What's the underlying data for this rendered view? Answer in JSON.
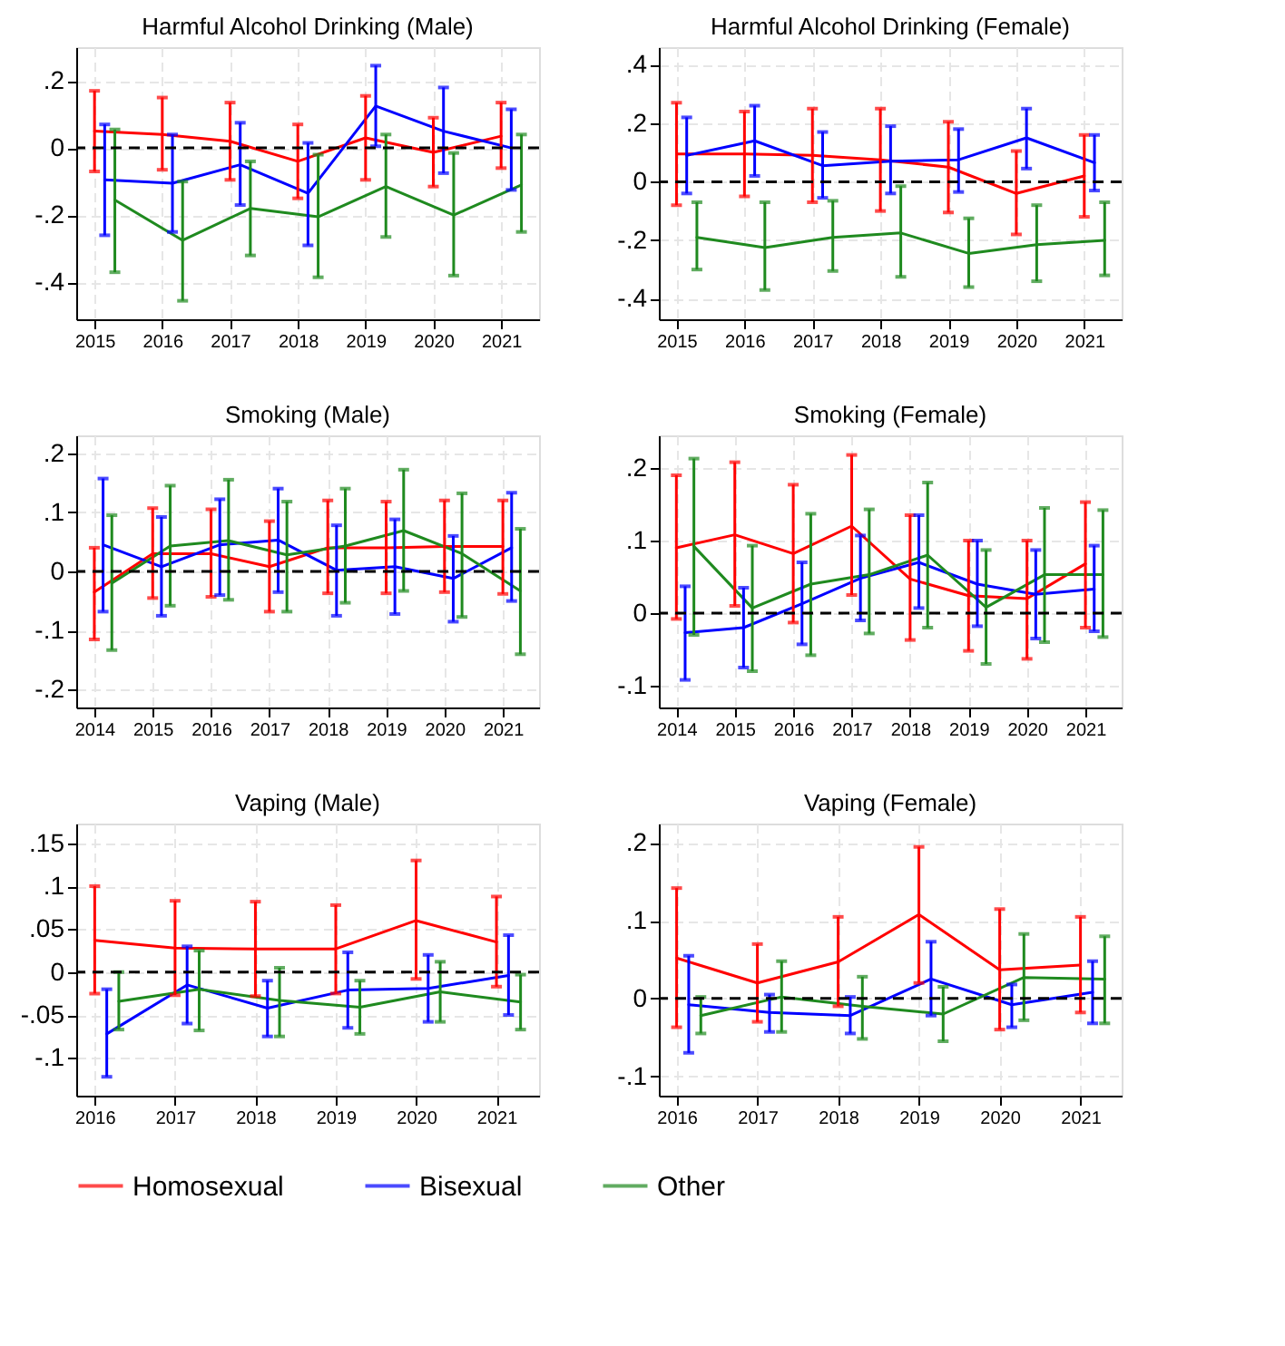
{
  "chart_data": [
    {
      "type": "line",
      "title": "Harmful Alcohol Drinking (Male)",
      "xlim": [
        2014.73,
        2021.56
      ],
      "xticks": [
        2015,
        2016,
        2017,
        2018,
        2019,
        2020,
        2021
      ],
      "ylim": [
        -0.51,
        0.3
      ],
      "yticks": [
        {
          "value": -0.4,
          "label": "-.4"
        },
        {
          "value": -0.2,
          "label": "-.2"
        },
        0,
        {
          "value": 0.2,
          "label": ".2"
        }
      ],
      "grid": true,
      "legend": "bottom",
      "marker": "none",
      "line_style": "solid",
      "ref_lines": [
        {
          "axis": "y",
          "value": 0,
          "line_style": "dashed",
          "color": "#000000"
        }
      ],
      "series": [
        {
          "name": "Homosexual",
          "color": "#ff0000",
          "x": [
            2015,
            2016,
            2017,
            2018,
            2019,
            2020,
            2021
          ],
          "values": [
            0.05,
            0.04,
            0.02,
            -0.04,
            0.03,
            -0.013,
            0.035
          ],
          "errors": [
            [
              -0.07,
              0.17
            ],
            [
              -0.065,
              0.15
            ],
            [
              -0.095,
              0.135
            ],
            [
              -0.15,
              0.07
            ],
            [
              -0.095,
              0.155
            ],
            [
              -0.115,
              0.09
            ],
            [
              -0.06,
              0.135
            ]
          ]
        },
        {
          "name": "Bisexual",
          "color": "#0000ff",
          "x": [
            2015.15,
            2016.15,
            2017.15,
            2018.15,
            2019.15,
            2020.15,
            2021.15
          ],
          "values": [
            -0.095,
            -0.105,
            -0.05,
            -0.135,
            0.125,
            0.05,
            0.0
          ],
          "errors": [
            [
              -0.26,
              0.07
            ],
            [
              -0.25,
              0.04
            ],
            [
              -0.17,
              0.075
            ],
            [
              -0.29,
              0.015
            ],
            [
              0.005,
              0.245
            ],
            [
              -0.075,
              0.18
            ],
            [
              -0.125,
              0.115
            ]
          ]
        },
        {
          "name": "Other",
          "color": "#1f8a1f",
          "x": [
            2015.3,
            2016.3,
            2017.3,
            2018.3,
            2019.3,
            2020.3,
            2021.3
          ],
          "values": [
            -0.155,
            -0.275,
            -0.18,
            -0.205,
            -0.115,
            -0.2,
            -0.11
          ],
          "errors": [
            [
              -0.37,
              0.055
            ],
            [
              -0.455,
              -0.1
            ],
            [
              -0.32,
              -0.04
            ],
            [
              -0.385,
              -0.02
            ],
            [
              -0.265,
              0.04
            ],
            [
              -0.38,
              -0.015
            ],
            [
              -0.25,
              0.04
            ]
          ]
        }
      ]
    },
    {
      "type": "line",
      "title": "Harmful Alcohol Drinking (Female)",
      "xlim": [
        2014.74,
        2021.55
      ],
      "xticks": [
        2015,
        2016,
        2017,
        2018,
        2019,
        2020,
        2021
      ],
      "ylim": [
        -0.47,
        0.46
      ],
      "yticks": [
        {
          "value": -0.4,
          "label": "-.4"
        },
        {
          "value": -0.2,
          "label": "-.2"
        },
        0,
        {
          "value": 0.2,
          "label": ".2"
        },
        {
          "value": 0.4,
          "label": ".4"
        }
      ],
      "grid": true,
      "legend": "bottom",
      "marker": "none",
      "line_style": "solid",
      "ref_lines": [
        {
          "axis": "y",
          "value": 0,
          "line_style": "dashed",
          "color": "#000000"
        }
      ],
      "series": [
        {
          "name": "Homosexual",
          "color": "#ff0000",
          "x": [
            2015,
            2016,
            2017,
            2018,
            2019,
            2020,
            2021
          ],
          "values": [
            0.095,
            0.095,
            0.09,
            0.075,
            0.05,
            -0.04,
            0.02
          ],
          "errors": [
            [
              -0.08,
              0.27
            ],
            [
              -0.05,
              0.24
            ],
            [
              -0.07,
              0.25
            ],
            [
              -0.1,
              0.25
            ],
            [
              -0.105,
              0.205
            ],
            [
              -0.18,
              0.105
            ],
            [
              -0.12,
              0.16
            ]
          ]
        },
        {
          "name": "Bisexual",
          "color": "#0000ff",
          "x": [
            2015.15,
            2016.15,
            2017.15,
            2018.15,
            2019.15,
            2020.15,
            2021.15
          ],
          "values": [
            0.09,
            0.14,
            0.055,
            0.07,
            0.075,
            0.15,
            0.065
          ],
          "errors": [
            [
              -0.04,
              0.22
            ],
            [
              0.02,
              0.26
            ],
            [
              -0.055,
              0.17
            ],
            [
              -0.04,
              0.19
            ],
            [
              -0.035,
              0.18
            ],
            [
              0.045,
              0.25
            ],
            [
              -0.03,
              0.16
            ]
          ]
        },
        {
          "name": "Other",
          "color": "#1f8a1f",
          "x": [
            2015.3,
            2016.3,
            2017.3,
            2018.3,
            2019.3,
            2020.3,
            2021.3
          ],
          "values": [
            -0.19,
            -0.225,
            -0.19,
            -0.175,
            -0.245,
            -0.215,
            -0.2
          ],
          "errors": [
            [
              -0.3,
              -0.07
            ],
            [
              -0.37,
              -0.07
            ],
            [
              -0.305,
              -0.065
            ],
            [
              -0.325,
              -0.015
            ],
            [
              -0.36,
              -0.125
            ],
            [
              -0.34,
              -0.08
            ],
            [
              -0.32,
              -0.07
            ]
          ]
        }
      ]
    },
    {
      "type": "line",
      "title": "Smoking (Male)",
      "xlim": [
        2013.69,
        2021.62
      ],
      "xticks": [
        2014,
        2015,
        2016,
        2017,
        2018,
        2019,
        2020,
        2021
      ],
      "ylim": [
        -0.23,
        0.23
      ],
      "yticks": [
        {
          "value": -0.2,
          "label": "-.2"
        },
        {
          "value": -0.1,
          "label": "-.1"
        },
        0,
        {
          "value": 0.1,
          "label": ".1"
        },
        {
          "value": 0.2,
          "label": ".2"
        }
      ],
      "grid": true,
      "legend": "bottom",
      "marker": "none",
      "line_style": "solid",
      "ref_lines": [
        {
          "axis": "y",
          "value": 0,
          "line_style": "dashed",
          "color": "#000000"
        }
      ],
      "series": [
        {
          "name": "Homosexual",
          "color": "#ff0000",
          "x": [
            2014,
            2015,
            2016,
            2017,
            2018,
            2019,
            2020,
            2021
          ],
          "values": [
            -0.035,
            0.03,
            0.03,
            0.008,
            0.04,
            0.04,
            0.042,
            0.042
          ],
          "errors": [
            [
              -0.115,
              0.04
            ],
            [
              -0.045,
              0.107
            ],
            [
              -0.043,
              0.105
            ],
            [
              -0.068,
              0.085
            ],
            [
              -0.037,
              0.12
            ],
            [
              -0.037,
              0.118
            ],
            [
              -0.035,
              0.12
            ],
            [
              -0.038,
              0.12
            ]
          ]
        },
        {
          "name": "Bisexual",
          "color": "#0000ff",
          "x": [
            2014.15,
            2015.15,
            2016.15,
            2017.15,
            2018.15,
            2019.15,
            2020.15,
            2021.15
          ],
          "values": [
            0.045,
            0.008,
            0.045,
            0.053,
            0.002,
            0.008,
            -0.012,
            0.04
          ],
          "errors": [
            [
              -0.068,
              0.157
            ],
            [
              -0.075,
              0.092
            ],
            [
              -0.04,
              0.122
            ],
            [
              -0.035,
              0.14
            ],
            [
              -0.075,
              0.078
            ],
            [
              -0.072,
              0.088
            ],
            [
              -0.085,
              0.06
            ],
            [
              -0.05,
              0.133
            ]
          ]
        },
        {
          "name": "Other",
          "color": "#1f8a1f",
          "x": [
            2014.3,
            2015.3,
            2016.3,
            2017.3,
            2018.3,
            2019.3,
            2020.3,
            2021.3
          ],
          "values": [
            -0.02,
            0.043,
            0.052,
            0.028,
            0.043,
            0.069,
            0.03,
            -0.033
          ],
          "errors": [
            [
              -0.133,
              0.095
            ],
            [
              -0.058,
              0.145
            ],
            [
              -0.048,
              0.155
            ],
            [
              -0.068,
              0.118
            ],
            [
              -0.053,
              0.14
            ],
            [
              -0.033,
              0.172
            ],
            [
              -0.077,
              0.132
            ],
            [
              -0.14,
              0.072
            ]
          ]
        }
      ]
    },
    {
      "type": "line",
      "title": "Smoking (Female)",
      "xlim": [
        2013.7,
        2021.62
      ],
      "xticks": [
        2014,
        2015,
        2016,
        2017,
        2018,
        2019,
        2020,
        2021
      ],
      "ylim": [
        -0.13,
        0.245
      ],
      "yticks": [
        {
          "value": -0.1,
          "label": "-.1"
        },
        0,
        {
          "value": 0.1,
          "label": ".1"
        },
        {
          "value": 0.2,
          "label": ".2"
        }
      ],
      "grid": true,
      "legend": "bottom",
      "marker": "none",
      "line_style": "solid",
      "ref_lines": [
        {
          "axis": "y",
          "value": 0,
          "line_style": "dashed",
          "color": "#000000"
        }
      ],
      "series": [
        {
          "name": "Homosexual",
          "color": "#ff0000",
          "x": [
            2014,
            2015,
            2016,
            2017,
            2018,
            2019,
            2020,
            2021
          ],
          "values": [
            0.09,
            0.108,
            0.082,
            0.12,
            0.047,
            0.024,
            0.02,
            0.068
          ],
          "errors": [
            [
              -0.008,
              0.19
            ],
            [
              0.01,
              0.208
            ],
            [
              -0.013,
              0.177
            ],
            [
              0.025,
              0.218
            ],
            [
              -0.037,
              0.135
            ],
            [
              -0.052,
              0.1
            ],
            [
              -0.063,
              0.1
            ],
            [
              -0.02,
              0.153
            ]
          ]
        },
        {
          "name": "Bisexual",
          "color": "#0000ff",
          "x": [
            2014.15,
            2015.15,
            2016.15,
            2017.15,
            2018.15,
            2019.15,
            2020.15,
            2021.15
          ],
          "values": [
            -0.027,
            -0.02,
            0.013,
            0.048,
            0.07,
            0.04,
            0.026,
            0.033
          ],
          "errors": [
            [
              -0.092,
              0.037
            ],
            [
              -0.075,
              0.035
            ],
            [
              -0.043,
              0.07
            ],
            [
              -0.01,
              0.107
            ],
            [
              0.007,
              0.135
            ],
            [
              -0.018,
              0.1
            ],
            [
              -0.035,
              0.087
            ],
            [
              -0.025,
              0.093
            ]
          ]
        },
        {
          "name": "Other",
          "color": "#1f8a1f",
          "x": [
            2014.3,
            2015.3,
            2016.3,
            2017.3,
            2018.3,
            2019.3,
            2020.3,
            2021.3
          ],
          "values": [
            0.092,
            0.007,
            0.04,
            0.053,
            0.08,
            0.008,
            0.053,
            0.053
          ],
          "errors": [
            [
              -0.03,
              0.213
            ],
            [
              -0.08,
              0.093
            ],
            [
              -0.058,
              0.137
            ],
            [
              -0.028,
              0.143
            ],
            [
              -0.02,
              0.18
            ],
            [
              -0.07,
              0.087
            ],
            [
              -0.04,
              0.145
            ],
            [
              -0.033,
              0.142
            ]
          ]
        }
      ]
    },
    {
      "type": "line",
      "title": "Vaping (Male)",
      "xlim": [
        2015.77,
        2021.53
      ],
      "xticks": [
        2016,
        2017,
        2018,
        2019,
        2020,
        2021
      ],
      "ylim": [
        -0.144,
        0.173
      ],
      "yticks": [
        {
          "value": -0.1,
          "label": "-.1"
        },
        {
          "value": -0.05,
          "label": "-.05"
        },
        0,
        {
          "value": 0.05,
          "label": ".05"
        },
        {
          "value": 0.1,
          "label": ".1"
        },
        {
          "value": 0.15,
          "label": ".15"
        }
      ],
      "grid": true,
      "legend": "bottom",
      "marker": "none",
      "line_style": "solid",
      "ref_lines": [
        {
          "axis": "y",
          "value": 0,
          "line_style": "dashed",
          "color": "#000000"
        }
      ],
      "series": [
        {
          "name": "Homosexual",
          "color": "#ff0000",
          "x": [
            2016,
            2017,
            2018,
            2019,
            2020,
            2021
          ],
          "values": [
            0.037,
            0.028,
            0.027,
            0.027,
            0.06,
            0.035
          ],
          "errors": [
            [
              -0.025,
              0.1
            ],
            [
              -0.027,
              0.083
            ],
            [
              -0.028,
              0.082
            ],
            [
              -0.025,
              0.078
            ],
            [
              -0.008,
              0.13
            ],
            [
              -0.017,
              0.088
            ]
          ]
        },
        {
          "name": "Bisexual",
          "color": "#0000ff",
          "x": [
            2016.15,
            2017.15,
            2018.15,
            2019.15,
            2020.15,
            2021.15
          ],
          "values": [
            -0.072,
            -0.015,
            -0.042,
            -0.021,
            -0.019,
            -0.004
          ],
          "errors": [
            [
              -0.122,
              -0.02
            ],
            [
              -0.06,
              0.03
            ],
            [
              -0.075,
              -0.01
            ],
            [
              -0.065,
              0.023
            ],
            [
              -0.058,
              0.02
            ],
            [
              -0.05,
              0.043
            ]
          ]
        },
        {
          "name": "Other",
          "color": "#1f8a1f",
          "x": [
            2016.3,
            2017.3,
            2018.3,
            2019.3,
            2020.3,
            2021.3
          ],
          "values": [
            -0.034,
            -0.02,
            -0.033,
            -0.041,
            -0.023,
            -0.035
          ],
          "errors": [
            [
              -0.067,
              0.0
            ],
            [
              -0.068,
              0.025
            ],
            [
              -0.075,
              0.005
            ],
            [
              -0.072,
              -0.01
            ],
            [
              -0.058,
              0.012
            ],
            [
              -0.067,
              -0.003
            ]
          ]
        }
      ]
    },
    {
      "type": "line",
      "title": "Vaping (Female)",
      "xlim": [
        2015.78,
        2021.51
      ],
      "xticks": [
        2016,
        2017,
        2018,
        2019,
        2020,
        2021
      ],
      "ylim": [
        -0.125,
        0.225
      ],
      "yticks": [
        {
          "value": -0.1,
          "label": "-.1"
        },
        0,
        {
          "value": 0.1,
          "label": ".1"
        },
        {
          "value": 0.2,
          "label": ".2"
        }
      ],
      "grid": true,
      "legend": "bottom",
      "marker": "none",
      "line_style": "solid",
      "ref_lines": [
        {
          "axis": "y",
          "value": 0,
          "line_style": "dashed",
          "color": "#000000"
        }
      ],
      "series": [
        {
          "name": "Homosexual",
          "color": "#ff0000",
          "x": [
            2016,
            2017,
            2018,
            2019,
            2020,
            2021
          ],
          "values": [
            0.052,
            0.02,
            0.047,
            0.108,
            0.037,
            0.043
          ],
          "errors": [
            [
              -0.037,
              0.142
            ],
            [
              -0.03,
              0.07
            ],
            [
              -0.01,
              0.105
            ],
            [
              0.02,
              0.195
            ],
            [
              -0.04,
              0.115
            ],
            [
              -0.018,
              0.105
            ]
          ]
        },
        {
          "name": "Bisexual",
          "color": "#0000ff",
          "x": [
            2016.15,
            2017.15,
            2018.15,
            2019.15,
            2020.15,
            2021.15
          ],
          "values": [
            -0.008,
            -0.018,
            -0.022,
            0.025,
            -0.008,
            0.008
          ],
          "errors": [
            [
              -0.07,
              0.055
            ],
            [
              -0.043,
              0.005
            ],
            [
              -0.045,
              0.002
            ],
            [
              -0.022,
              0.073
            ],
            [
              -0.037,
              0.018
            ],
            [
              -0.032,
              0.048
            ]
          ]
        },
        {
          "name": "Other",
          "color": "#1f8a1f",
          "x": [
            2016.3,
            2017.3,
            2018.3,
            2019.3,
            2020.3,
            2021.3
          ],
          "values": [
            -0.022,
            0.002,
            -0.01,
            -0.02,
            0.027,
            0.025
          ],
          "errors": [
            [
              -0.045,
              0.002
            ],
            [
              -0.043,
              0.048
            ],
            [
              -0.052,
              0.028
            ],
            [
              -0.055,
              0.015
            ],
            [
              -0.028,
              0.083
            ],
            [
              -0.032,
              0.08
            ]
          ]
        }
      ]
    }
  ]
}
